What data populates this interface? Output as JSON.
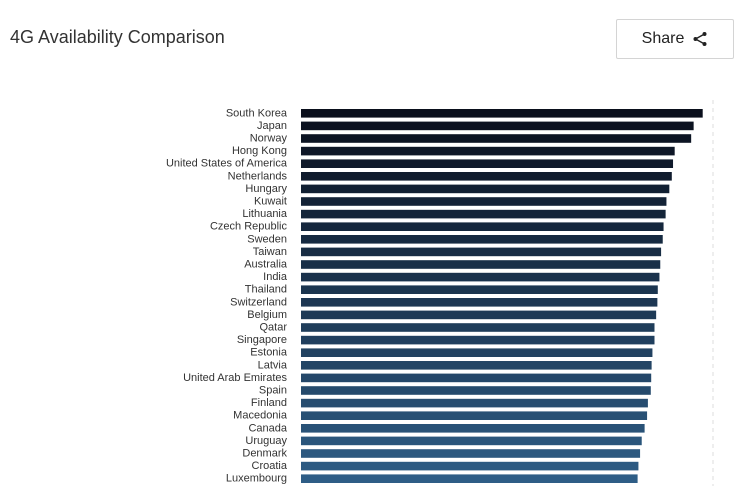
{
  "header": {
    "title": "4G Availability Comparison",
    "share_label": "Share",
    "share_icon": "share-icon"
  },
  "colors": {
    "bar_top": "#0a0f1c",
    "bar_bottom": "#2e5d86",
    "gridline": "#dddddd"
  },
  "chart_data": {
    "type": "bar",
    "orientation": "horizontal",
    "title": "",
    "xlabel": "",
    "ylabel": "",
    "xlim": [
      0,
      100
    ],
    "grid": true,
    "legend": "none",
    "categories": [
      "South Korea",
      "Japan",
      "Norway",
      "Hong Kong",
      "United States of America",
      "Netherlands",
      "Hungary",
      "Kuwait",
      "Lithuania",
      "Czech Republic",
      "Sweden",
      "Taiwan",
      "Australia",
      "India",
      "Thailand",
      "Switzerland",
      "Belgium",
      "Qatar",
      "Singapore",
      "Estonia",
      "Latvia",
      "United Arab Emirates",
      "Spain",
      "Finland",
      "Macedonia",
      "Canada",
      "Uruguay",
      "Denmark",
      "Croatia",
      "Luxembourg"
    ],
    "values": [
      97.5,
      95.3,
      94.7,
      90.7,
      90.3,
      90.0,
      89.4,
      88.7,
      88.5,
      88.0,
      87.8,
      87.4,
      87.2,
      87.0,
      86.6,
      86.5,
      86.2,
      85.8,
      85.8,
      85.3,
      85.1,
      85.0,
      84.9,
      84.2,
      84.0,
      83.4,
      82.7,
      82.3,
      81.9,
      81.7
    ]
  }
}
